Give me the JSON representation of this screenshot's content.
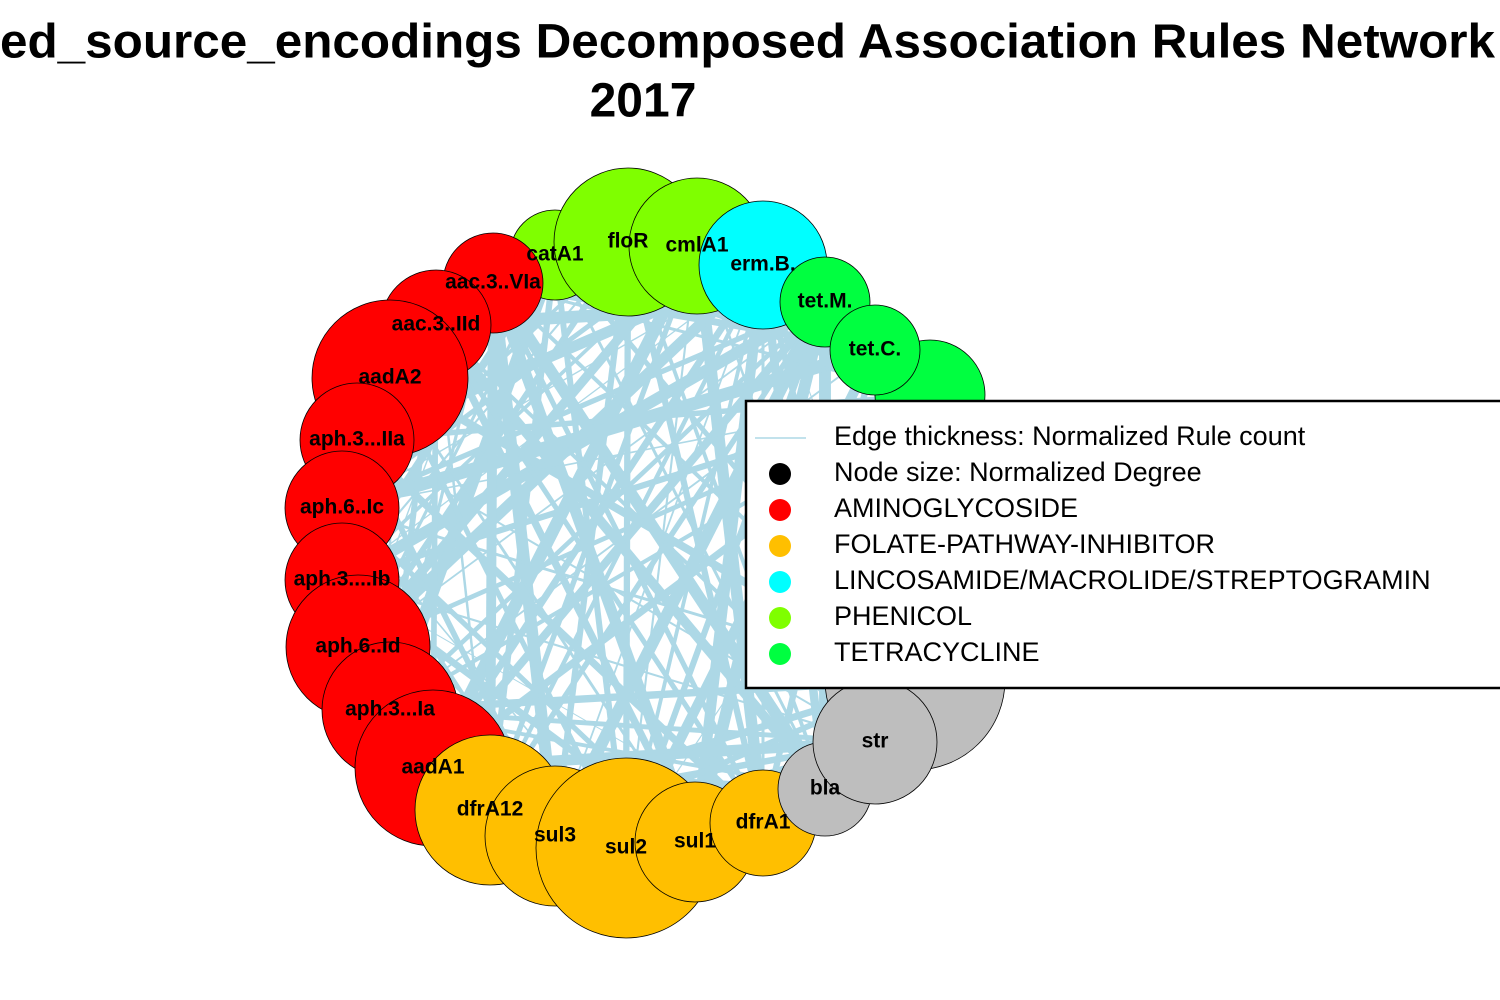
{
  "title": {
    "line1": "ed_source_encodings Decomposed Association Rules Network",
    "line2": "2017"
  },
  "nodes": [
    {
      "label": "catA1",
      "color": "#7fff00"
    },
    {
      "label": "floR",
      "color": "#7fff00"
    },
    {
      "label": "cmlA1",
      "color": "#7fff00"
    },
    {
      "label": "erm.B.",
      "color": "#00ffff"
    },
    {
      "label": "tet.M.",
      "color": "#00ff40"
    },
    {
      "label": "tet.C.",
      "color": "#00ff40"
    },
    {
      "label": "aac.3..VIa",
      "color": "#ff0000"
    },
    {
      "label": "aac.3..IId",
      "color": "#ff0000"
    },
    {
      "label": "aadA2",
      "color": "#ff0000"
    },
    {
      "label": "aph.3...IIa",
      "color": "#ff0000"
    },
    {
      "label": "aph.6..Ic",
      "color": "#ff0000"
    },
    {
      "label": "aph.3....Ib",
      "color": "#ff0000"
    },
    {
      "label": "aph.6..Id",
      "color": "#ff0000"
    },
    {
      "label": "aph.3...Ia",
      "color": "#ff0000"
    },
    {
      "label": "aadA1",
      "color": "#ff0000"
    },
    {
      "label": "dfrA12",
      "color": "#ffbf00"
    },
    {
      "label": "sul3",
      "color": "#ffbf00"
    },
    {
      "label": "sul2",
      "color": "#ffbf00"
    },
    {
      "label": "sul1",
      "color": "#ffbf00"
    },
    {
      "label": "dfrA1",
      "color": "#ffbf00"
    },
    {
      "label": "bla",
      "color": "#bebebe"
    },
    {
      "label": "str",
      "color": "#bebebe"
    }
  ],
  "legend": {
    "edge": {
      "label": "Edge thickness: Normalized Rule count",
      "color": "#add8e6"
    },
    "node": {
      "label": "Node size: Normalized Degree",
      "color": "#000000"
    },
    "groups": [
      {
        "label": "AMINOGLYCOSIDE",
        "color": "#ff0000"
      },
      {
        "label": "FOLATE-PATHWAY-INHIBITOR",
        "color": "#ffbf00"
      },
      {
        "label": "LINCOSAMIDE/MACROLIDE/STREPTOGRAMIN",
        "color": "#00ffff"
      },
      {
        "label": "PHENICOL",
        "color": "#7fff00"
      },
      {
        "label": "TETRACYCLINE",
        "color": "#00ff40"
      }
    ]
  }
}
